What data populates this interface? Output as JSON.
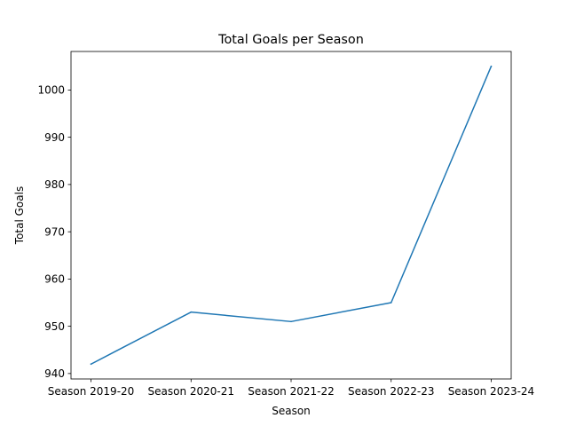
{
  "chart_data": {
    "type": "line",
    "title": "Total Goals per Season",
    "xlabel": "Season",
    "ylabel": "Total Goals",
    "categories": [
      "Season 2019-20",
      "Season 2020-21",
      "Season 2021-22",
      "Season 2022-23",
      "Season 2023-24"
    ],
    "series": [
      {
        "values": [
          942,
          953,
          951,
          955,
          1005
        ],
        "color": "#1f77b4"
      }
    ],
    "ylim": [
      938.85,
      1008.15
    ],
    "yticks": [
      940,
      950,
      960,
      970,
      980,
      990,
      1000
    ],
    "grid": false,
    "legend": "none"
  }
}
